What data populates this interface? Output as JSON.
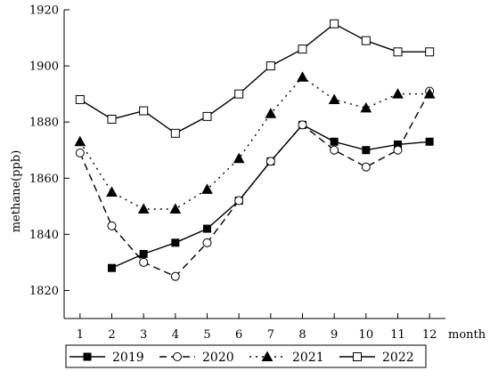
{
  "chart_data": {
    "type": "line",
    "xlabel": "month",
    "ylabel": "methane(ppb)",
    "x": [
      1,
      2,
      3,
      4,
      5,
      6,
      7,
      8,
      9,
      10,
      11,
      12
    ],
    "x_ticks": [
      "1",
      "2",
      "3",
      "4",
      "5",
      "6",
      "7",
      "8",
      "9",
      "10",
      "11",
      "12"
    ],
    "xlim": [
      0.5,
      12.5
    ],
    "ylim": [
      1810,
      1920
    ],
    "y_ticks": [
      "1820",
      "1840",
      "1860",
      "1880",
      "1900",
      "1920"
    ],
    "grid": false,
    "legend_position": "bottom",
    "series": [
      {
        "name": "2019",
        "marker": "filled-square",
        "line_style": "solid",
        "color": "#000000",
        "values": [
          null,
          1828,
          1833,
          1837,
          1842,
          1852,
          1866,
          1879,
          1873,
          1870,
          1872,
          1873
        ]
      },
      {
        "name": "2020",
        "marker": "open-circle",
        "line_style": "dashed",
        "color": "#000000",
        "values": [
          1869,
          1843,
          1830,
          1825,
          1837,
          1852,
          1866,
          1879,
          1870,
          1864,
          1870,
          1891
        ]
      },
      {
        "name": "2021",
        "marker": "filled-triangle",
        "line_style": "dotted",
        "color": "#000000",
        "values": [
          1873,
          1855,
          1849,
          1849,
          1856,
          1867,
          1883,
          1896,
          1888,
          1885,
          1890,
          1890
        ]
      },
      {
        "name": "2022",
        "marker": "open-square",
        "line_style": "solid",
        "color": "#000000",
        "values": [
          1888,
          1881,
          1884,
          1876,
          1882,
          1890,
          1900,
          1906,
          1915,
          1909,
          1905,
          1905
        ]
      }
    ]
  }
}
